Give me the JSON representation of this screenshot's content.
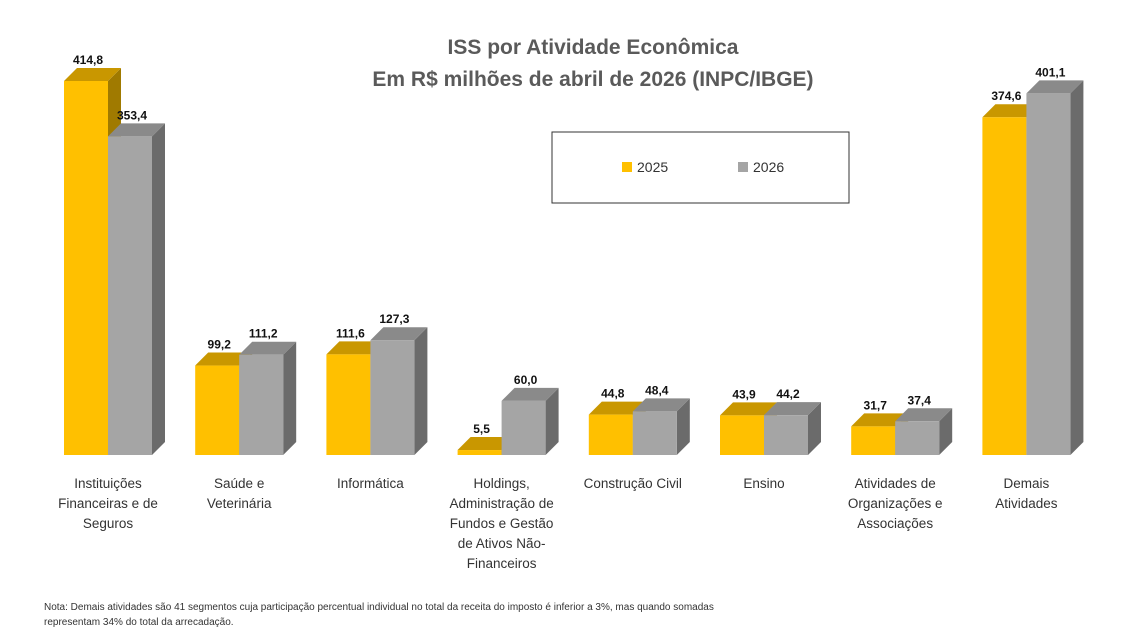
{
  "chart_data": {
    "type": "bar",
    "title": "ISS por Atividade Econômica",
    "subtitle": "Em R$ milhões de abril de 2026 (INPC/IBGE)",
    "categories": [
      "Instituições Financeiras e de Seguros",
      "Saúde e Veterinária",
      "Informática",
      "Holdings, Administração de Fundos e Gestão de Ativos Não-Financeiros",
      "Construção Civil",
      "Ensino",
      "Atividades de Organizações e Associações",
      "Demais Atividades"
    ],
    "category_lines": [
      [
        "Instituições",
        "Financeiras e de",
        "Seguros"
      ],
      [
        "Saúde e",
        "Veterinária"
      ],
      [
        "Informática"
      ],
      [
        "Holdings,",
        "Administração de",
        "Fundos e Gestão",
        "de Ativos Não-",
        "Financeiros"
      ],
      [
        "Construção Civil"
      ],
      [
        "Ensino"
      ],
      [
        "Atividades de",
        "Organizações e",
        "Associações"
      ],
      [
        "Demais",
        "Atividades"
      ]
    ],
    "series": [
      {
        "name": "2025",
        "color": "#FFC000",
        "values": [
          414.8,
          99.2,
          111.6,
          5.5,
          44.8,
          43.9,
          31.7,
          374.6
        ],
        "labels": [
          "414,8",
          "99,2",
          "111,6",
          "5,5",
          "44,8",
          "43,9",
          "31,7",
          "374,6"
        ]
      },
      {
        "name": "2026",
        "color": "#A5A5A5",
        "values": [
          353.4,
          111.2,
          127.3,
          60.0,
          48.4,
          44.2,
          37.4,
          401.1
        ],
        "labels": [
          "353,4",
          "111,2",
          "127,3",
          "60,0",
          "48,4",
          "44,2",
          "37,4",
          "401,1"
        ]
      }
    ],
    "style": "3d-clustered-column",
    "ylim": [
      0,
      420
    ],
    "grid": false,
    "legend_position": "top-center, boxed",
    "note": "Nota: Demais atividades são 41 segmentos cuja participação percentual individual no total da receita do imposto é inferior a 3%, mas quando somadas representam 34% do total da arrecadação."
  }
}
